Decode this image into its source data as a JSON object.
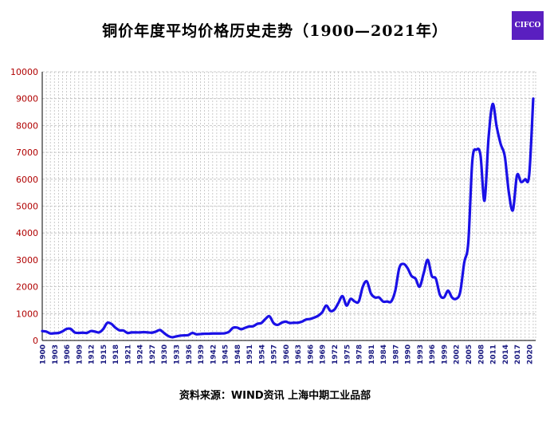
{
  "title": "铜价年度平均价格历史走势（1900—2021年）",
  "logo_text": "CIFCO",
  "source": "资料来源：WIND资讯      上海中期工业品部",
  "colors": {
    "line": "#1a10e6",
    "axis_text": "#b00000",
    "xtick_text": "#1a1a80",
    "grid": "#bdbdbd",
    "logo_bg": "#5a1fc0"
  },
  "chart_data": {
    "type": "line",
    "title": "铜价年度平均价格历史走势（1900—2021年）",
    "xlabel": "",
    "ylabel": "",
    "ylim": [
      0,
      10000
    ],
    "yticks": [
      0,
      1000,
      2000,
      3000,
      4000,
      5000,
      6000,
      7000,
      8000,
      9000,
      10000
    ],
    "xlim": [
      1900,
      2021
    ],
    "xticks": [
      1900,
      1903,
      1906,
      1909,
      1912,
      1915,
      1918,
      1921,
      1924,
      1927,
      1930,
      1933,
      1936,
      1939,
      1942,
      1945,
      1948,
      1951,
      1954,
      1957,
      1960,
      1963,
      1966,
      1969,
      1972,
      1975,
      1978,
      1981,
      1984,
      1987,
      1990,
      1993,
      1996,
      1999,
      2002,
      2005,
      2008,
      2011,
      2014,
      2017,
      2020
    ],
    "grid": true,
    "series": [
      {
        "x": [
          1900,
          1901,
          1902,
          1903,
          1904,
          1905,
          1906,
          1907,
          1908,
          1909,
          1910,
          1911,
          1912,
          1913,
          1914,
          1915,
          1916,
          1917,
          1918,
          1919,
          1920,
          1921,
          1922,
          1923,
          1924,
          1925,
          1926,
          1927,
          1928,
          1929,
          1930,
          1931,
          1932,
          1933,
          1934,
          1935,
          1936,
          1937,
          1938,
          1939,
          1940,
          1941,
          1942,
          1943,
          1944,
          1945,
          1946,
          1947,
          1948,
          1949,
          1950,
          1951,
          1952,
          1953,
          1954,
          1955,
          1956,
          1957,
          1958,
          1959,
          1960,
          1961,
          1962,
          1963,
          1964,
          1965,
          1966,
          1967,
          1968,
          1969,
          1970,
          1971,
          1972,
          1973,
          1974,
          1975,
          1976,
          1977,
          1978,
          1979,
          1980,
          1981,
          1982,
          1983,
          1984,
          1985,
          1986,
          1987,
          1988,
          1989,
          1990,
          1991,
          1992,
          1993,
          1994,
          1995,
          1996,
          1997,
          1998,
          1999,
          2000,
          2001,
          2002,
          2003,
          2004,
          2005,
          2006,
          2007,
          2008,
          2009,
          2010,
          2011,
          2012,
          2013,
          2014,
          2015,
          2016,
          2017,
          2018,
          2019,
          2020,
          2021
        ],
        "values": [
          350,
          330,
          260,
          270,
          280,
          340,
          430,
          430,
          300,
          280,
          290,
          280,
          350,
          330,
          300,
          420,
          650,
          620,
          480,
          380,
          370,
          280,
          300,
          300,
          300,
          310,
          300,
          290,
          330,
          390,
          280,
          170,
          120,
          150,
          180,
          190,
          200,
          280,
          230,
          240,
          250,
          250,
          260,
          260,
          260,
          270,
          320,
          470,
          480,
          420,
          470,
          520,
          530,
          620,
          650,
          800,
          900,
          650,
          580,
          660,
          700,
          650,
          660,
          660,
          700,
          780,
          800,
          850,
          920,
          1050,
          1300,
          1100,
          1150,
          1400,
          1650,
          1300,
          1550,
          1450,
          1450,
          2000,
          2200,
          1750,
          1600,
          1600,
          1450,
          1450,
          1450,
          1850,
          2700,
          2850,
          2700,
          2400,
          2300,
          2000,
          2500,
          3000,
          2400,
          2300,
          1700,
          1600,
          1850,
          1600,
          1550,
          1800,
          2900,
          3650,
          6700,
          7100,
          6900,
          5200,
          7550,
          8800,
          7950,
          7300,
          6850,
          5500,
          4850,
          6150,
          5900,
          6000,
          6150,
          9000
        ]
      }
    ]
  }
}
